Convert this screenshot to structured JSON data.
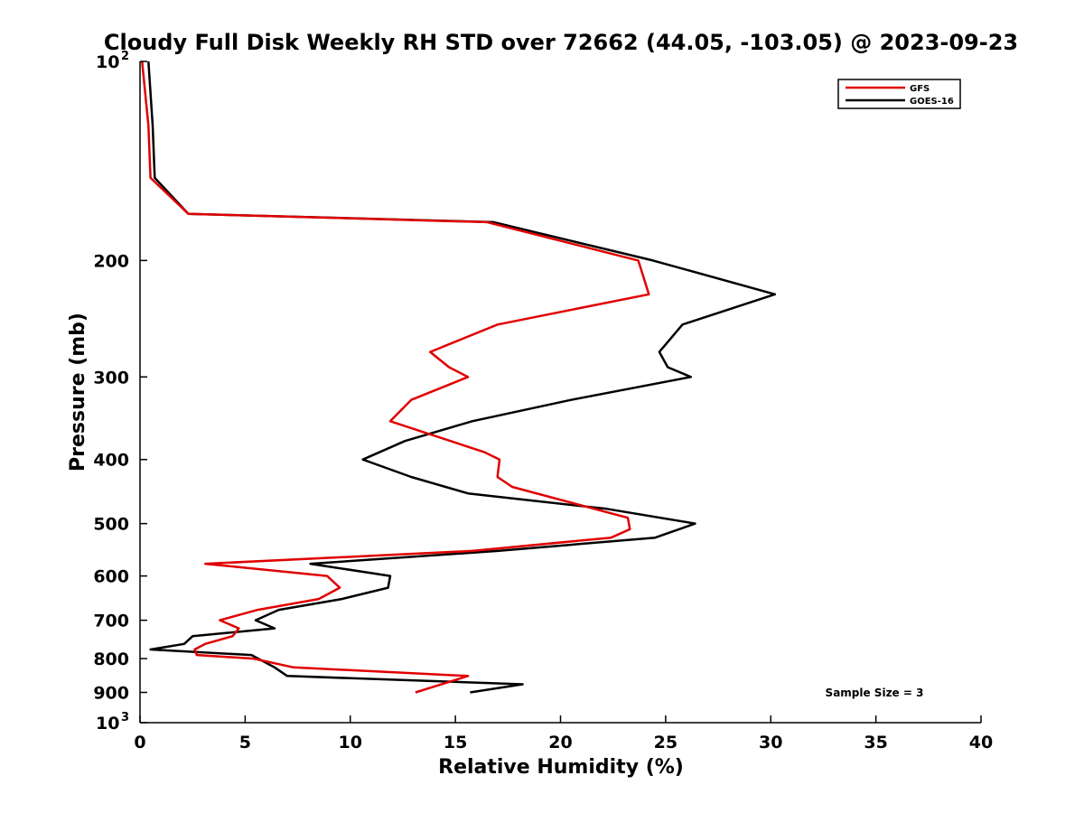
{
  "chart_data": {
    "type": "line",
    "title": "Cloudy Full Disk Weekly RH STD over 72662 (44.05, -103.05) @ 2023-09-23",
    "xlabel": "Relative Humidity (%)",
    "ylabel": "Pressure (mb)",
    "xlim": [
      0,
      40
    ],
    "ylim": [
      100,
      1000
    ],
    "y_scale": "log",
    "y_reversed": true,
    "x_ticks": [
      "0",
      "5",
      "10",
      "15",
      "20",
      "25",
      "30",
      "35",
      "40"
    ],
    "y_ticks": [
      {
        "value": 100,
        "base": "10",
        "exp": "2"
      },
      {
        "value": 200,
        "label": "200"
      },
      {
        "value": 300,
        "label": "300"
      },
      {
        "value": 400,
        "label": "400"
      },
      {
        "value": 500,
        "label": "500"
      },
      {
        "value": 600,
        "label": "600"
      },
      {
        "value": 700,
        "label": "700"
      },
      {
        "value": 800,
        "label": "800"
      },
      {
        "value": 900,
        "label": "900"
      },
      {
        "value": 1000,
        "base": "10",
        "exp": "3"
      }
    ],
    "grid": false,
    "legend_position": "top-right",
    "annotation": "Sample Size = 3",
    "series": [
      {
        "name": "GFS",
        "color": "#e00000",
        "points": [
          {
            "x": 0.1,
            "p": 100
          },
          {
            "x": 0.4,
            "p": 125
          },
          {
            "x": 0.5,
            "p": 150
          },
          {
            "x": 2.3,
            "p": 170
          },
          {
            "x": 16.5,
            "p": 175
          },
          {
            "x": 23.7,
            "p": 200
          },
          {
            "x": 24.2,
            "p": 225
          },
          {
            "x": 17.0,
            "p": 250
          },
          {
            "x": 13.8,
            "p": 275
          },
          {
            "x": 14.7,
            "p": 290
          },
          {
            "x": 15.6,
            "p": 300
          },
          {
            "x": 12.9,
            "p": 325
          },
          {
            "x": 11.9,
            "p": 350
          },
          {
            "x": 16.4,
            "p": 390
          },
          {
            "x": 17.1,
            "p": 400
          },
          {
            "x": 17.0,
            "p": 425
          },
          {
            "x": 17.7,
            "p": 440
          },
          {
            "x": 23.2,
            "p": 490
          },
          {
            "x": 23.3,
            "p": 510
          },
          {
            "x": 22.4,
            "p": 525
          },
          {
            "x": 15.8,
            "p": 550
          },
          {
            "x": 3.1,
            "p": 575
          },
          {
            "x": 8.9,
            "p": 600
          },
          {
            "x": 9.5,
            "p": 625
          },
          {
            "x": 8.5,
            "p": 650
          },
          {
            "x": 5.6,
            "p": 675
          },
          {
            "x": 3.8,
            "p": 700
          },
          {
            "x": 4.7,
            "p": 720
          },
          {
            "x": 4.4,
            "p": 740
          },
          {
            "x": 3.1,
            "p": 760
          },
          {
            "x": 2.6,
            "p": 775
          },
          {
            "x": 2.7,
            "p": 790
          },
          {
            "x": 5.4,
            "p": 800
          },
          {
            "x": 7.3,
            "p": 825
          },
          {
            "x": 15.6,
            "p": 850
          },
          {
            "x": 13.1,
            "p": 900
          }
        ]
      },
      {
        "name": "GOES-16",
        "color": "#000000",
        "points": [
          {
            "x": 0.4,
            "p": 100
          },
          {
            "x": 0.6,
            "p": 125
          },
          {
            "x": 0.7,
            "p": 150
          },
          {
            "x": 2.3,
            "p": 170
          },
          {
            "x": 16.8,
            "p": 175
          },
          {
            "x": 24.4,
            "p": 200
          },
          {
            "x": 30.2,
            "p": 225
          },
          {
            "x": 25.8,
            "p": 250
          },
          {
            "x": 24.7,
            "p": 275
          },
          {
            "x": 25.1,
            "p": 290
          },
          {
            "x": 26.2,
            "p": 300
          },
          {
            "x": 20.5,
            "p": 325
          },
          {
            "x": 15.8,
            "p": 350
          },
          {
            "x": 12.6,
            "p": 375
          },
          {
            "x": 10.6,
            "p": 400
          },
          {
            "x": 12.9,
            "p": 425
          },
          {
            "x": 15.6,
            "p": 450
          },
          {
            "x": 22.2,
            "p": 475
          },
          {
            "x": 26.4,
            "p": 500
          },
          {
            "x": 24.5,
            "p": 525
          },
          {
            "x": 17.0,
            "p": 550
          },
          {
            "x": 8.1,
            "p": 575
          },
          {
            "x": 11.9,
            "p": 600
          },
          {
            "x": 11.8,
            "p": 625
          },
          {
            "x": 9.6,
            "p": 650
          },
          {
            "x": 6.6,
            "p": 675
          },
          {
            "x": 5.5,
            "p": 700
          },
          {
            "x": 6.4,
            "p": 720
          },
          {
            "x": 2.5,
            "p": 740
          },
          {
            "x": 2.1,
            "p": 760
          },
          {
            "x": 0.5,
            "p": 775
          },
          {
            "x": 5.3,
            "p": 790
          },
          {
            "x": 6.4,
            "p": 825
          },
          {
            "x": 7.0,
            "p": 850
          },
          {
            "x": 18.2,
            "p": 875
          },
          {
            "x": 15.7,
            "p": 900
          }
        ]
      }
    ]
  }
}
